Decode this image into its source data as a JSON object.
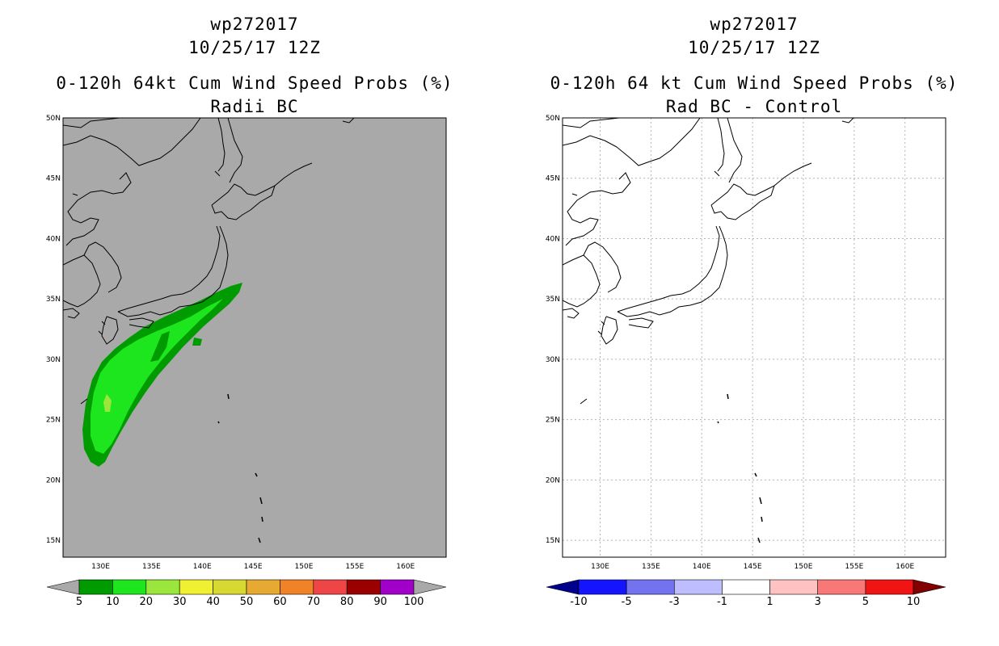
{
  "left_panel": {
    "storm_id": "wp272017",
    "datetime": "10/25/17 12Z",
    "product": "0-120h 64kt Cum Wind Speed Probs (%)",
    "subtitle": "Radii BC",
    "colorbar": {
      "labels": [
        "5",
        "10",
        "20",
        "30",
        "40",
        "50",
        "60",
        "70",
        "80",
        "90",
        "100"
      ],
      "colors": [
        "#009b00",
        "#1ee61e",
        "#9ae63c",
        "#f0f032",
        "#d8d832",
        "#e6aa32",
        "#f08228",
        "#ee4646",
        "#9b0000",
        "#a000c8"
      ],
      "under_color": "#a9a9a9",
      "over_color": "#a9a9a9"
    }
  },
  "right_panel": {
    "storm_id": "wp272017",
    "datetime": "10/25/17 12Z",
    "product": "0-120h 64 kt Cum Wind Speed Probs (%)",
    "subtitle": "Rad BC - Control",
    "colorbar": {
      "labels": [
        "-10",
        "-5",
        "-3",
        "-1",
        "1",
        "3",
        "5",
        "10"
      ],
      "colors": [
        "#1414ff",
        "#7373f0",
        "#bebeff",
        "#ffffff",
        "#ffc2c2",
        "#f87878",
        "#f01414"
      ],
      "under_color": "#00008c",
      "over_color": "#820000"
    }
  },
  "map": {
    "lon_labels": [
      "130E",
      "135E",
      "140E",
      "145E",
      "150E",
      "155E",
      "160E"
    ],
    "lat_labels": [
      "50N",
      "45N",
      "40N",
      "35N",
      "30N",
      "25N",
      "20N",
      "15N"
    ],
    "lon_range": [
      126.3,
      164.0
    ],
    "lat_range": [
      13.6,
      50.0
    ]
  },
  "colors": {
    "land_sea_background": "#a9a9a9",
    "coastline": "#000000",
    "grid": "#b4b4b4"
  }
}
